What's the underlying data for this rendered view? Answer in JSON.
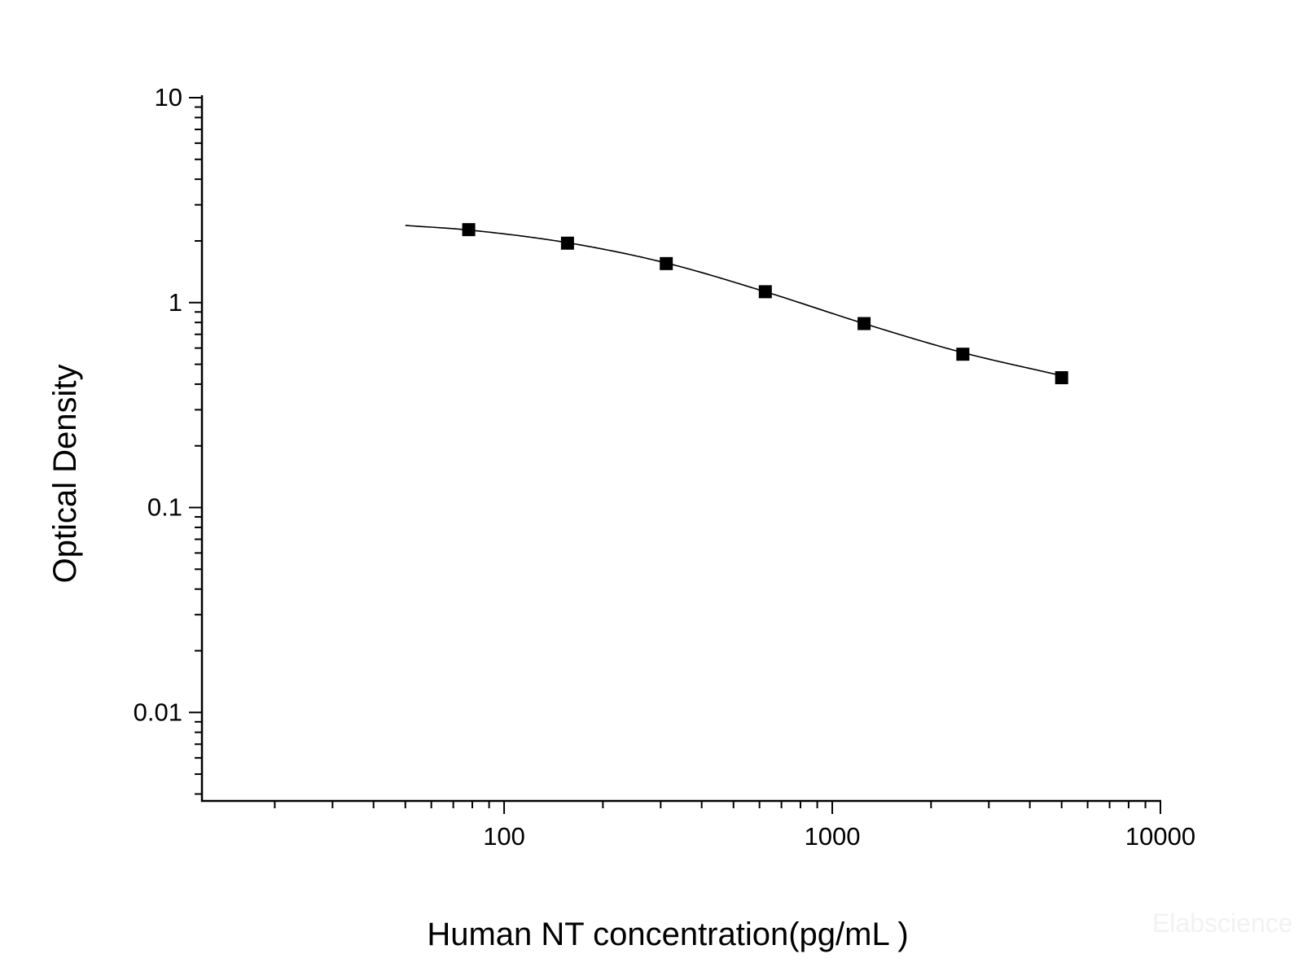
{
  "chart_data": {
    "type": "scatter",
    "xlabel": "Human NT concentration(pg/mL )",
    "ylabel": "Optical Density",
    "x_scale": "log",
    "y_scale": "log",
    "xlim": [
      12,
      10000
    ],
    "ylim": [
      0.0037,
      10
    ],
    "x_ticks": [
      {
        "value": 100,
        "label": "100"
      },
      {
        "value": 1000,
        "label": "1000"
      },
      {
        "value": 10000,
        "label": "10000"
      }
    ],
    "y_ticks": [
      {
        "value": 10,
        "label": "10"
      },
      {
        "value": 1,
        "label": "1"
      },
      {
        "value": 0.1,
        "label": "0.1"
      },
      {
        "value": 0.01,
        "label": "0.01"
      }
    ],
    "grid": false,
    "legend": "none",
    "series": [
      {
        "marker": "square",
        "color": "#000000",
        "x": [
          78,
          156,
          312,
          625,
          1250,
          2500,
          5000
        ],
        "y": [
          2.27,
          1.95,
          1.55,
          1.13,
          0.79,
          0.56,
          0.43
        ]
      }
    ],
    "fit_curve": {
      "color": "#000000",
      "x": [
        50,
        78,
        156,
        312,
        625,
        1250,
        2500,
        5000
      ],
      "y": [
        2.38,
        2.26,
        1.96,
        1.56,
        1.13,
        0.79,
        0.57,
        0.44
      ]
    }
  },
  "watermark": "Elabscience"
}
